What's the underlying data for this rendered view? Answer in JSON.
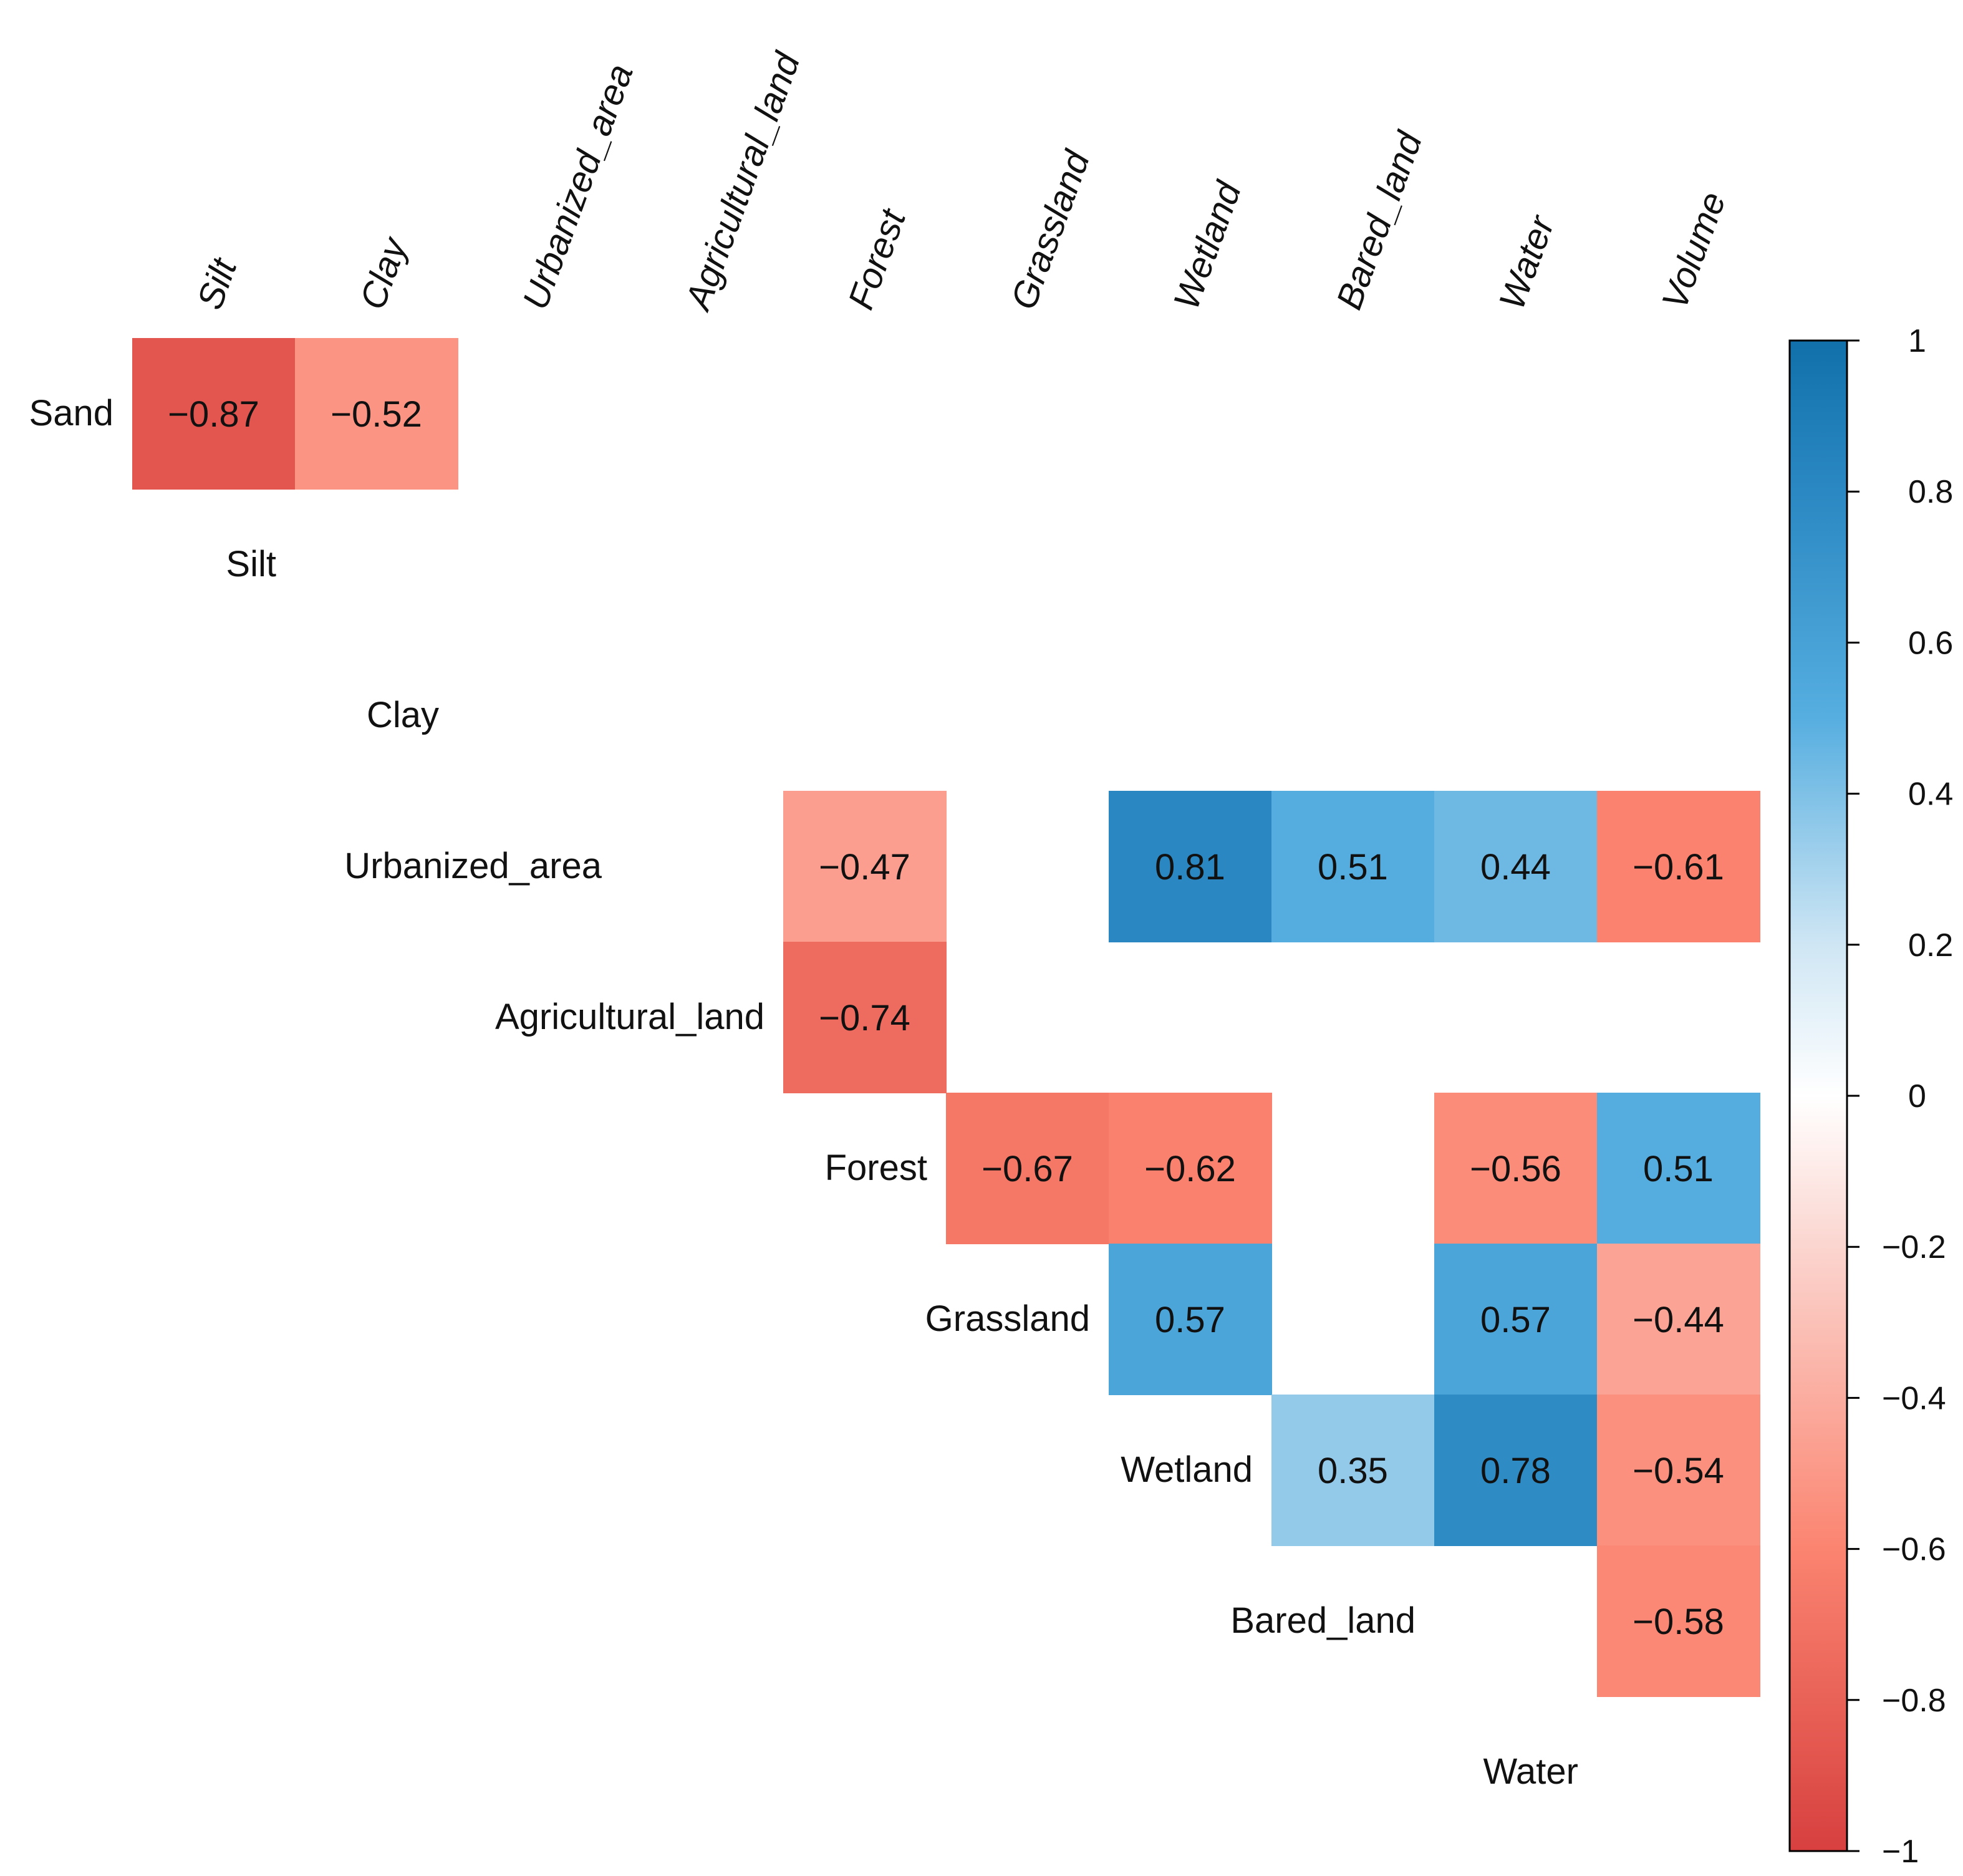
{
  "chart_data": {
    "type": "heatmap",
    "columns": [
      "Silt",
      "Clay",
      "Urbanized_area",
      "Agricultural_land",
      "Forest",
      "Grassland",
      "Wetland",
      "Bared_land",
      "Water",
      "Volume"
    ],
    "rows": [
      "Sand",
      "Silt",
      "Clay",
      "Urbanized_area",
      "Agricultural_land",
      "Forest",
      "Grassland",
      "Wetland",
      "Bared_land",
      "Water"
    ],
    "cells": [
      {
        "row": "Sand",
        "col": "Silt",
        "value": -0.87,
        "label": "−0.87"
      },
      {
        "row": "Sand",
        "col": "Clay",
        "value": -0.52,
        "label": "−0.52"
      },
      {
        "row": "Urbanized_area",
        "col": "Forest",
        "value": -0.47,
        "label": "−0.47"
      },
      {
        "row": "Urbanized_area",
        "col": "Wetland",
        "value": 0.81,
        "label": "0.81"
      },
      {
        "row": "Urbanized_area",
        "col": "Bared_land",
        "value": 0.51,
        "label": "0.51"
      },
      {
        "row": "Urbanized_area",
        "col": "Water",
        "value": 0.44,
        "label": "0.44"
      },
      {
        "row": "Urbanized_area",
        "col": "Volume",
        "value": -0.61,
        "label": "−0.61"
      },
      {
        "row": "Agricultural_land",
        "col": "Forest",
        "value": -0.74,
        "label": "−0.74"
      },
      {
        "row": "Forest",
        "col": "Grassland",
        "value": -0.67,
        "label": "−0.67"
      },
      {
        "row": "Forest",
        "col": "Wetland",
        "value": -0.62,
        "label": "−0.62"
      },
      {
        "row": "Forest",
        "col": "Water",
        "value": -0.56,
        "label": "−0.56"
      },
      {
        "row": "Forest",
        "col": "Volume",
        "value": 0.51,
        "label": "0.51"
      },
      {
        "row": "Grassland",
        "col": "Wetland",
        "value": 0.57,
        "label": "0.57"
      },
      {
        "row": "Grassland",
        "col": "Water",
        "value": 0.57,
        "label": "0.57"
      },
      {
        "row": "Grassland",
        "col": "Volume",
        "value": -0.44,
        "label": "−0.44"
      },
      {
        "row": "Wetland",
        "col": "Bared_land",
        "value": 0.35,
        "label": "0.35"
      },
      {
        "row": "Wetland",
        "col": "Water",
        "value": 0.78,
        "label": "0.78"
      },
      {
        "row": "Wetland",
        "col": "Volume",
        "value": -0.54,
        "label": "−0.54"
      },
      {
        "row": "Bared_land",
        "col": "Volume",
        "value": -0.58,
        "label": "−0.58"
      }
    ],
    "value_range": [
      -1,
      1
    ],
    "colorbar": {
      "ticks": [
        1,
        0.8,
        0.6,
        0.4,
        0.2,
        0,
        -0.2,
        -0.4,
        -0.6,
        -0.8,
        -1
      ],
      "tick_labels": [
        "1",
        "0.8",
        "0.6",
        "0.4",
        "0.2",
        "0",
        "−0.2",
        "−0.4",
        "−0.6",
        "−0.8",
        "−1"
      ],
      "placement": "right"
    },
    "colors": {
      "negative_end": "#d53e4f",
      "mid": "#ffffff",
      "positive_end": "#1170aa",
      "stops": [
        {
          "v": -1,
          "c": "#d7403f"
        },
        {
          "v": -0.6,
          "c": "#fb8470"
        },
        {
          "v": -0.2,
          "c": "#fbd5cf"
        },
        {
          "v": 0,
          "c": "#ffffff"
        },
        {
          "v": 0.2,
          "c": "#cfe6f4"
        },
        {
          "v": 0.5,
          "c": "#56aee0"
        },
        {
          "v": 0.8,
          "c": "#2b88c2"
        },
        {
          "v": 1,
          "c": "#1170aa"
        }
      ]
    },
    "title": "",
    "xlabel": "",
    "ylabel": "",
    "grid": false
  }
}
